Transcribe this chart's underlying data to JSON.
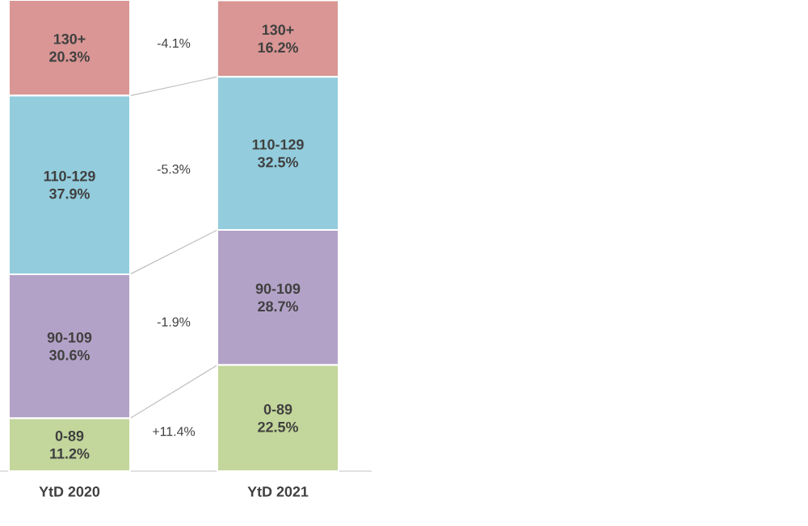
{
  "chart_data": {
    "type": "bar",
    "stacked": true,
    "categories": [
      "YtD 2020",
      "YtD 2021"
    ],
    "ylim": [
      0,
      100
    ],
    "tick_labels": "x",
    "series": [
      {
        "name": "0-89",
        "color": "#c3d69b",
        "values": [
          11.2,
          22.5
        ],
        "value_labels": [
          "11.2%",
          "22.5%"
        ]
      },
      {
        "name": "90-109",
        "color": "#b3a2c7",
        "values": [
          30.6,
          28.7
        ],
        "value_labels": [
          "30.6%",
          "28.7%"
        ]
      },
      {
        "name": "110-129",
        "color": "#93cddd",
        "values": [
          37.9,
          32.5
        ],
        "value_labels": [
          "37.9%",
          "32.5%"
        ]
      },
      {
        "name": "130+",
        "color": "#d99694",
        "values": [
          20.3,
          16.2
        ],
        "value_labels": [
          "20.3%",
          "16.2%"
        ]
      }
    ],
    "annotations": [
      "+11.4%",
      "-1.9%",
      "-5.3%",
      "-4.1%"
    ]
  }
}
